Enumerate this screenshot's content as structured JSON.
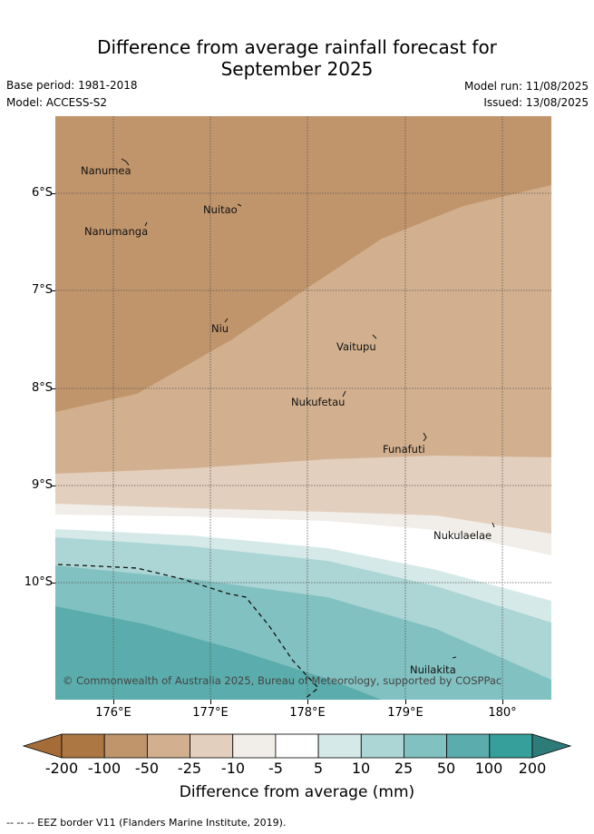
{
  "title": {
    "line1": "Difference from average rainfall forecast for",
    "line2": "September 2025"
  },
  "meta": {
    "base_period": "Base period: 1981-2018",
    "model": "Model: ACCESS-S2",
    "model_run": "Model run: 11/08/2025",
    "issued": "Issued: 13/08/2025"
  },
  "map": {
    "latitude_labels": [
      "6°S",
      "7°S",
      "8°S",
      "9°S",
      "10°S"
    ],
    "longitude_labels": [
      "176°E",
      "177°E",
      "178°E",
      "179°E",
      "180°"
    ],
    "places": [
      {
        "name": "Nanumea"
      },
      {
        "name": "Nuitao"
      },
      {
        "name": "Nanumanga"
      },
      {
        "name": "Niu"
      },
      {
        "name": "Vaitupu"
      },
      {
        "name": "Nukufetau"
      },
      {
        "name": "Funafuti"
      },
      {
        "name": "Nukulaelae"
      },
      {
        "name": "Nuilakita"
      }
    ],
    "copyright": "© Commonwealth of Australia 2025, Bureau of Meteorology, supported by COSPPac"
  },
  "colorbar": {
    "title": "Difference from average (mm)",
    "labels": [
      "-200",
      "-100",
      "-50",
      "-25",
      "-10",
      "-5",
      "5",
      "10",
      "25",
      "50",
      "100",
      "200"
    ],
    "colors": [
      "#a66c37",
      "#ac7743",
      "#c1956c",
      "#d2b08f",
      "#e3cfbd",
      "#f1ede8",
      "#ffffff",
      "#d5e9e8",
      "#acd5d5",
      "#82c1c1",
      "#5aadac",
      "#369f9c",
      "#2e7c7a"
    ]
  },
  "footer": "--  --  -- EEZ border V11 (Flanders Marine Institute, 2019)."
}
